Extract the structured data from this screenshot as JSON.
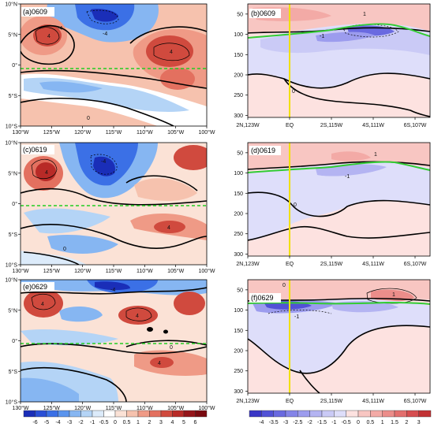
{
  "panels": [
    {
      "label": "(a)0609"
    },
    {
      "label": "(b)0609"
    },
    {
      "label": "(c)0619"
    },
    {
      "label": "(d)0619"
    },
    {
      "label": "(e)0629"
    },
    {
      "label": "(f)0629"
    }
  ],
  "map_axes": {
    "x_ticks": [
      "130°W",
      "125°W",
      "120°W",
      "115°W",
      "110°W",
      "105°W",
      "100°W"
    ],
    "y_ticks": [
      "10°N",
      "5°N",
      "0°",
      "5°S",
      "10°S"
    ]
  },
  "section_axes": {
    "x_ticks": [
      "2N,123W",
      "EQ",
      "2S,115W",
      "4S,111W",
      "6S,107W"
    ],
    "y_ticks": [
      "50",
      "100",
      "150",
      "200",
      "250",
      "300"
    ]
  },
  "colorbar_left": {
    "labels": [
      "-6",
      "-5",
      "-4",
      "-3",
      "-2",
      "-1",
      "-0.5",
      "0",
      "0.5",
      "1",
      "2",
      "3",
      "4",
      "5",
      "6"
    ],
    "colors": [
      "#1a2eb8",
      "#2a4fd6",
      "#3b70e6",
      "#5a94ee",
      "#86b6f2",
      "#b4d4f6",
      "#dcebfa",
      "#ffffff",
      "#fbe2d6",
      "#f6c2ae",
      "#ef9a86",
      "#e3705f",
      "#d04a3e",
      "#b82a27",
      "#951419",
      "#7a0a10"
    ]
  },
  "colorbar_right": {
    "labels": [
      "-4",
      "-3.5",
      "-3",
      "-2.5",
      "-2",
      "-1.5",
      "-1",
      "-0.5",
      "0",
      "0.5",
      "1",
      "1.5",
      "2",
      "3"
    ],
    "colors": [
      "#3a36c6",
      "#5252d6",
      "#6a6ae0",
      "#8484e8",
      "#9c9cee",
      "#b4b4f2",
      "#cacaf6",
      "#dedefa",
      "#fde2e0",
      "#f8c6c2",
      "#f3aaa6",
      "#ec8d8a",
      "#e36f6e",
      "#d64e50",
      "#c23234"
    ]
  },
  "contour_labels": {
    "map": [
      "-4",
      "4",
      "0"
    ],
    "section": [
      "1",
      "-1",
      "0"
    ]
  },
  "colors": {
    "equator_line": "#22cc22",
    "section_eq_line": "#f0e000",
    "thermocline_line": "#33cc33"
  }
}
